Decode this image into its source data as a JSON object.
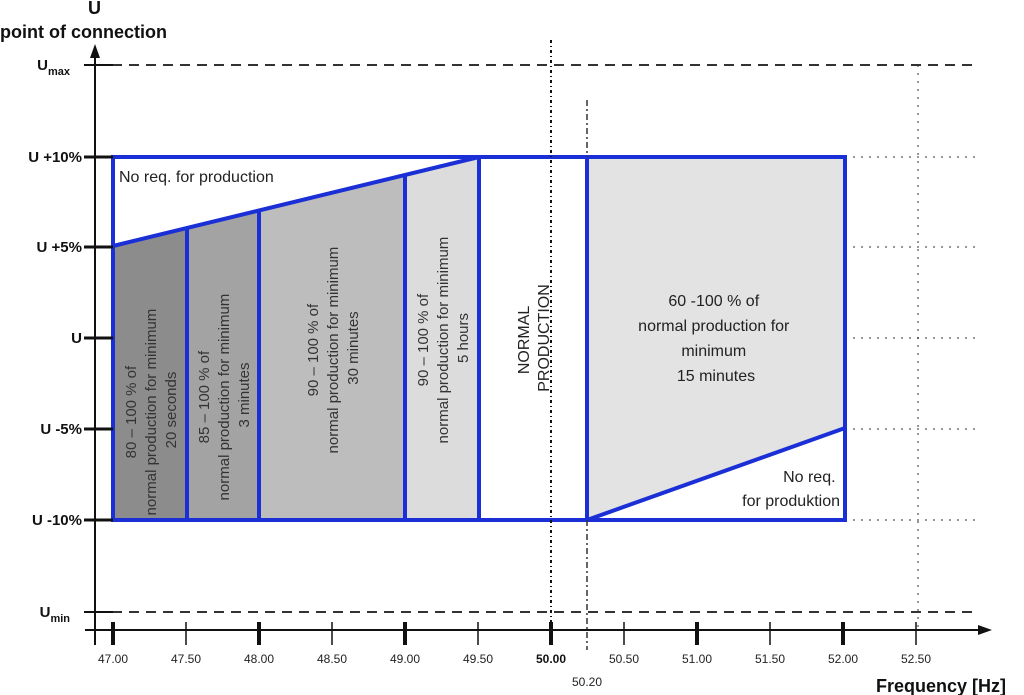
{
  "y_axis": {
    "title_letter": "U",
    "title": "point of connection",
    "levels": [
      {
        "base": "U",
        "sub": "max",
        "name": "umax"
      },
      {
        "base": "U +10%",
        "sub": "",
        "name": "u-plus-10"
      },
      {
        "base": "U +5%",
        "sub": "",
        "name": "u-plus-5"
      },
      {
        "base": "U",
        "sub": "",
        "name": "u-nominal"
      },
      {
        "base": "U -5%",
        "sub": "",
        "name": "u-minus-5"
      },
      {
        "base": "U -10%",
        "sub": "",
        "name": "u-minus-10"
      },
      {
        "base": "U",
        "sub": "min",
        "name": "umin"
      }
    ]
  },
  "x_axis": {
    "title": "Frequency [Hz]",
    "ticks": [
      "47.00",
      "47.50",
      "48.00",
      "48.50",
      "49.00",
      "49.50",
      "50.00",
      "50.50",
      "51.00",
      "51.50",
      "52.00",
      "52.50"
    ],
    "extra_tick": "50.20"
  },
  "regions": {
    "top_no_req": "No req. for production",
    "r1": [
      "80 – 100 % of",
      "normal production for minimum",
      "20 seconds"
    ],
    "r2": [
      "85 – 100 % of",
      "normal production for minimum",
      "3 minutes"
    ],
    "r3": [
      "90 – 100 % of",
      "normal production for minimum",
      "30 minutes"
    ],
    "r4": [
      "90 – 100 % of",
      "normal production for minimum",
      "5 hours"
    ],
    "normal": [
      "NORMAL",
      "PRODUCTION"
    ],
    "high": [
      "60 -100 % of",
      "normal production for",
      "minimum",
      "15 minutes"
    ],
    "bottom_no_req": [
      "No req.",
      "for produktion"
    ]
  },
  "colors": {
    "boundary": "#1a2fd6",
    "r1_fill": "#8c8c8c",
    "r2_fill": "#a3a3a3",
    "r3_fill": "#bdbdbd",
    "r4_fill": "#dcdcdc",
    "high_fill": "#e3e3e3"
  }
}
